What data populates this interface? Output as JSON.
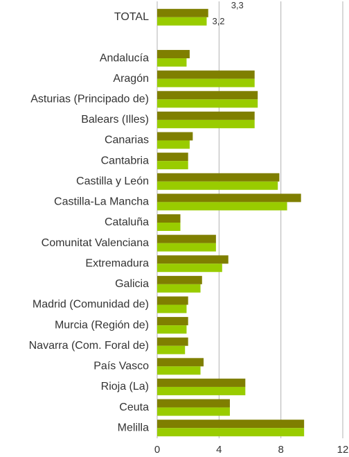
{
  "chart_data": {
    "type": "bar",
    "orientation": "horizontal",
    "categories": [
      "TOTAL",
      null,
      "Andalucía",
      "Aragón",
      "Asturias (Principado de)",
      "Balears (Illes)",
      "Canarias",
      "Cantabria",
      "Castilla y León",
      "Castilla-La Mancha",
      "Cataluña",
      "Comunitat Valenciana",
      "Extremadura",
      "Galicia",
      "Madrid (Comunidad de)",
      "Murcia (Región de)",
      "Navarra (Com. Foral de)",
      "País Vasco",
      "Rioja (La)",
      "Ceuta",
      "Melilla"
    ],
    "series": [
      {
        "color": "#7f7f00",
        "values": [
          3.3,
          null,
          2.1,
          6.3,
          6.5,
          6.3,
          2.3,
          2.0,
          7.9,
          9.3,
          1.5,
          3.8,
          4.6,
          2.9,
          2.0,
          2.0,
          2.0,
          3.0,
          5.7,
          4.7,
          9.5
        ],
        "value_labels": [
          "3,3",
          null,
          null,
          null,
          null,
          null,
          null,
          null,
          null,
          null,
          null,
          null,
          null,
          null,
          null,
          null,
          null,
          null,
          null,
          null,
          null
        ]
      },
      {
        "color": "#99cc00",
        "values": [
          3.2,
          null,
          1.9,
          6.3,
          6.5,
          6.3,
          2.1,
          2.0,
          7.8,
          8.4,
          1.5,
          3.8,
          4.2,
          2.8,
          1.9,
          1.9,
          1.8,
          2.8,
          5.7,
          4.7,
          9.5
        ],
        "value_labels": [
          "3,2",
          null,
          null,
          null,
          null,
          null,
          null,
          null,
          null,
          null,
          null,
          null,
          null,
          null,
          null,
          null,
          null,
          null,
          null,
          null,
          null
        ]
      }
    ],
    "xlim": [
      0,
      12
    ],
    "xticks": [
      0,
      4,
      8,
      12
    ],
    "grid": true
  }
}
